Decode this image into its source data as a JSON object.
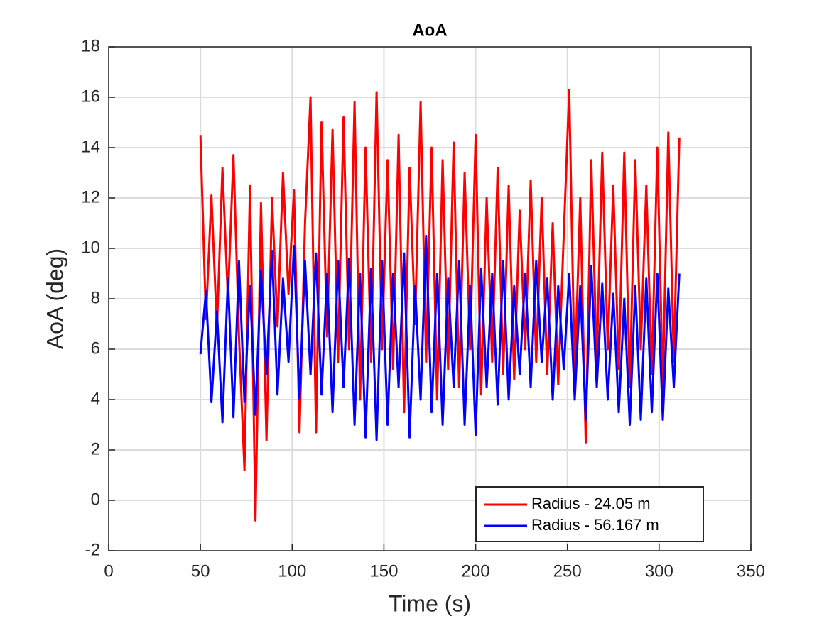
{
  "chart_data": {
    "type": "line",
    "title": "AoA",
    "xlabel": "Time (s)",
    "ylabel": "AoA (deg)",
    "x": [
      50,
      53,
      56,
      59,
      62,
      65,
      68,
      71,
      74,
      77,
      80,
      83,
      86,
      89,
      92,
      95,
      98,
      101,
      104,
      107,
      110,
      113,
      116,
      119,
      122,
      125,
      128,
      131,
      134,
      137,
      140,
      143,
      146,
      149,
      152,
      155,
      158,
      161,
      164,
      167,
      170,
      173,
      176,
      179,
      182,
      185,
      188,
      191,
      194,
      197,
      200,
      203,
      206,
      209,
      212,
      215,
      218,
      221,
      224,
      227,
      230,
      233,
      236,
      239,
      242,
      245,
      248,
      251,
      254,
      257,
      260,
      263,
      266,
      269,
      272,
      275,
      278,
      281,
      284,
      287,
      290,
      293,
      296,
      299,
      302,
      305,
      308,
      311
    ],
    "series": [
      {
        "name": "Radius - 24.05 m",
        "color": "#ff0000",
        "values": [
          14.5,
          7.2,
          12.1,
          6.8,
          13.2,
          8.0,
          13.7,
          6.5,
          1.2,
          12.5,
          -0.8,
          11.8,
          2.4,
          12.0,
          6.9,
          13.0,
          8.2,
          12.3,
          2.7,
          11.0,
          16.0,
          2.7,
          15.0,
          6.5,
          14.7,
          5.5,
          15.2,
          6.0,
          15.8,
          4.0,
          14.0,
          5.5,
          16.2,
          6.0,
          13.5,
          5.2,
          14.5,
          3.5,
          13.2,
          7.0,
          15.8,
          5.5,
          14.0,
          4.0,
          13.5,
          5.2,
          14.2,
          4.5,
          13.0,
          6.0,
          14.5,
          4.2,
          12.0,
          5.5,
          13.2,
          5.0,
          12.5,
          4.8,
          11.5,
          6.0,
          12.7,
          5.5,
          12.0,
          5.0,
          11.0,
          4.6,
          10.5,
          16.3,
          4.8,
          12.0,
          2.3,
          13.5,
          5.5,
          13.8,
          6.0,
          12.5,
          5.2,
          13.8,
          4.5,
          13.5,
          6.0,
          12.5,
          5.0,
          14.0,
          4.5,
          14.6,
          5.5,
          14.4
        ]
      },
      {
        "name": "Radius - 56.167 m",
        "color": "#0000ff",
        "values": [
          5.8,
          8.3,
          3.9,
          7.5,
          3.1,
          8.8,
          3.3,
          9.5,
          3.9,
          8.5,
          3.4,
          9.1,
          5.0,
          9.9,
          4.2,
          8.8,
          5.5,
          10.1,
          4.0,
          9.5,
          5.0,
          9.8,
          4.2,
          9.0,
          3.5,
          9.5,
          4.5,
          9.6,
          3.0,
          9.0,
          2.5,
          9.2,
          2.4,
          9.5,
          3.0,
          9.0,
          4.5,
          9.8,
          2.5,
          8.5,
          4.0,
          10.5,
          3.5,
          9.0,
          3.0,
          8.8,
          4.5,
          9.5,
          3.0,
          8.5,
          2.6,
          9.2,
          4.5,
          9.0,
          3.8,
          9.5,
          4.0,
          8.5,
          5.0,
          9.0,
          4.5,
          9.5,
          5.5,
          8.8,
          4.0,
          8.5,
          5.2,
          9.0,
          4.0,
          8.5,
          3.2,
          9.3,
          4.5,
          8.6,
          4.0,
          8.2,
          3.5,
          8.0,
          3.0,
          8.5,
          3.2,
          8.8,
          3.5,
          9.0,
          3.2,
          8.4,
          4.5,
          9.0
        ]
      }
    ],
    "xlim": [
      0,
      350
    ],
    "xticks": [
      0,
      50,
      100,
      150,
      200,
      250,
      300,
      350
    ],
    "ylim": [
      -2,
      18
    ],
    "yticks": [
      -2,
      0,
      2,
      4,
      6,
      8,
      10,
      12,
      14,
      16,
      18
    ],
    "grid": true,
    "legend": "southeast"
  }
}
